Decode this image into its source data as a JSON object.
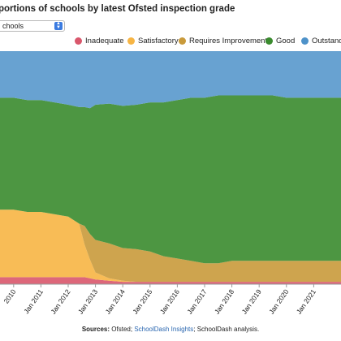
{
  "title": "portions of schools by latest Ofsted inspection grade",
  "selector": {
    "value": "chools"
  },
  "legend": [
    {
      "label": "Inadequate",
      "color": "#d9576c"
    },
    {
      "label": "Satisfactory",
      "color": "#f7b544"
    },
    {
      "label": "Requires Improvement",
      "color": "#c99a3b"
    },
    {
      "label": "Good",
      "color": "#3a8b2e"
    },
    {
      "label": "Outstandi",
      "color": "#4e92c9"
    }
  ],
  "source": {
    "label": "Sources:",
    "part1": "Ofsted;",
    "link": "SchoolDash Insights",
    "part2": "; SchoolDash analysis."
  },
  "chart_data": {
    "type": "area",
    "stacked": true,
    "percent_stacked": true,
    "title": "portions of schools by latest Ofsted inspection grade",
    "xlabel": "",
    "ylabel": "",
    "ylim": [
      0,
      100
    ],
    "x_tick_labels": [
      "2010",
      "Jan 2011",
      "Jan 2012",
      "Jan 2013",
      "Jan 2014",
      "Jan 2015",
      "Jan 2016",
      "Jan 2017",
      "Jan 2018",
      "Jan 2019",
      "Jan 2020",
      "Jan 2021"
    ],
    "x": [
      2009.5,
      2010.0,
      2010.5,
      2011.0,
      2011.5,
      2012.0,
      2012.4,
      2012.6,
      2012.8,
      2013.0,
      2013.5,
      2014.0,
      2014.5,
      2015.0,
      2015.5,
      2016.0,
      2016.5,
      2017.0,
      2017.5,
      2018.0,
      2018.5,
      2019.0,
      2019.5,
      2020.0,
      2020.5,
      2021.0,
      2021.5,
      2022.0
    ],
    "series": [
      {
        "name": "Inadequate",
        "color": "#d9576c",
        "values": [
          3,
          3,
          3,
          3,
          3,
          3,
          3,
          3,
          2.5,
          2,
          1.5,
          1,
          1,
          1,
          1,
          1,
          1,
          1,
          1,
          1,
          1,
          1,
          1,
          1,
          1,
          1,
          1,
          1
        ]
      },
      {
        "name": "Satisfactory",
        "color": "#f7b544",
        "values": [
          29,
          29,
          28,
          28,
          27,
          26,
          23,
          14,
          8,
          3,
          1,
          0.5,
          0,
          0,
          0,
          0,
          0,
          0,
          0,
          0,
          0,
          0,
          0,
          0,
          0,
          0,
          0,
          0
        ]
      },
      {
        "name": "Requires Improvement",
        "color": "#c99a3b",
        "values": [
          0,
          0,
          0,
          0,
          0,
          0,
          0,
          8,
          11,
          14,
          15,
          14,
          14,
          13,
          11,
          10,
          9,
          8,
          8,
          9,
          9,
          9,
          9,
          9,
          9,
          9,
          9,
          9
        ]
      },
      {
        "name": "Good",
        "color": "#3a8b2e",
        "values": [
          48,
          48,
          48,
          48,
          48,
          48,
          50,
          51,
          54,
          58,
          60,
          61,
          62,
          64,
          66,
          68,
          70,
          71,
          72,
          71,
          71,
          71,
          71,
          70,
          70,
          70,
          70,
          70
        ]
      },
      {
        "name": "Outstandi",
        "color": "#4e92c9",
        "values": [
          20,
          20,
          21,
          21,
          22,
          23,
          24,
          24,
          24.5,
          23,
          22.5,
          23.5,
          23,
          22,
          22,
          21,
          20,
          20,
          19,
          19,
          19,
          19,
          19,
          20,
          20,
          20,
          20,
          20
        ]
      }
    ]
  }
}
